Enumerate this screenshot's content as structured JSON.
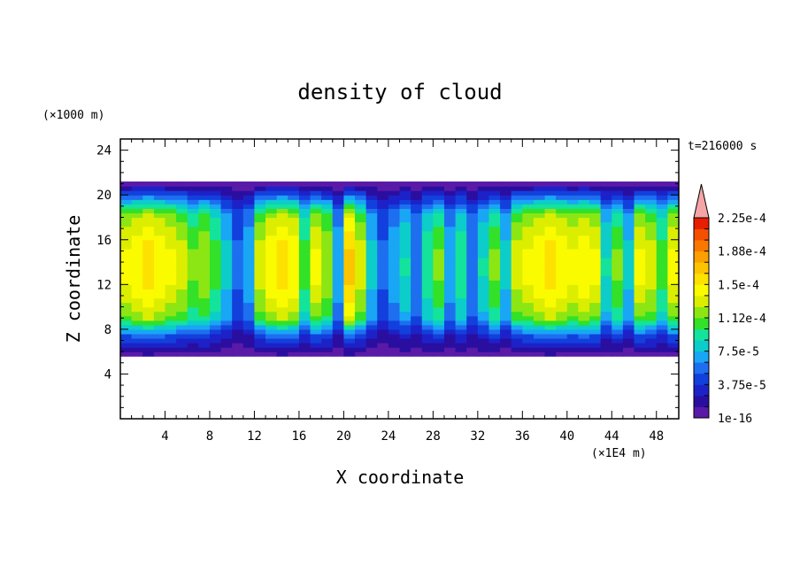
{
  "chart_data": {
    "type": "heatmap",
    "title": "density of cloud",
    "xlabel": "X coordinate",
    "ylabel": "Z coordinate",
    "x_unit": "(×1E4 m)",
    "y_unit": "(×1000 m)",
    "time_label": "t=216000 s",
    "xlim": [
      0,
      50
    ],
    "ylim": [
      0,
      25
    ],
    "x_ticks": [
      "4",
      "8",
      "12",
      "16",
      "20",
      "24",
      "28",
      "32",
      "36",
      "40",
      "44",
      "48"
    ],
    "x_tick_values": [
      4,
      8,
      12,
      16,
      20,
      24,
      28,
      32,
      36,
      40,
      44,
      48
    ],
    "y_ticks": [
      "4",
      "8",
      "12",
      "16",
      "20",
      "24"
    ],
    "y_tick_values": [
      4,
      8,
      12,
      16,
      20,
      24
    ],
    "cloud_layer": {
      "base_z": 5.6,
      "top_z": 21.2
    },
    "colorbar": {
      "extend": "max",
      "extend_color": "#f5a5a5",
      "colors": [
        "#5a1aa8",
        "#2a0ea0",
        "#1c22c8",
        "#1240dc",
        "#1e6ef0",
        "#18a6f5",
        "#0ccdc9",
        "#14e39b",
        "#32e128",
        "#8ce614",
        "#dcee00",
        "#fbfb00",
        "#fde100",
        "#fcc400",
        "#fba000",
        "#fa7800",
        "#f55000",
        "#e81e00"
      ],
      "tick_labels": [
        "1e-16",
        "3.75e-5",
        "7.5e-5",
        "1.12e-4",
        "1.5e-4",
        "1.88e-4",
        "2.25e-4"
      ],
      "tick_values": [
        0,
        3.75e-05,
        7.5e-05,
        0.0001125,
        0.00015,
        0.0001875,
        0.000225
      ],
      "vmin": 0,
      "vmax": 0.000255
    },
    "columns": [
      {
        "x": 0.5,
        "v": 0.00016
      },
      {
        "x": 1.5,
        "v": 0.00017
      },
      {
        "x": 2.5,
        "v": 0.00018
      },
      {
        "x": 3.5,
        "v": 0.00017
      },
      {
        "x": 4.5,
        "v": 0.00016
      },
      {
        "x": 5.5,
        "v": 0.00015
      },
      {
        "x": 6.5,
        "v": 0.00013
      },
      {
        "x": 7.5,
        "v": 0.00014
      },
      {
        "x": 8.5,
        "v": 0.00012
      },
      {
        "x": 9.5,
        "v": 9e-05
      },
      {
        "x": 10.5,
        "v": 6e-05
      },
      {
        "x": 11.5,
        "v": 8e-05
      },
      {
        "x": 12.5,
        "v": 0.00015
      },
      {
        "x": 13.5,
        "v": 0.00017
      },
      {
        "x": 14.5,
        "v": 0.00018
      },
      {
        "x": 15.5,
        "v": 0.00017
      },
      {
        "x": 16.5,
        "v": 0.00012
      },
      {
        "x": 17.5,
        "v": 0.00016
      },
      {
        "x": 18.5,
        "v": 0.00014
      },
      {
        "x": 19.5,
        "v": 8e-05
      },
      {
        "x": 20.5,
        "v": 0.00019
      },
      {
        "x": 21.5,
        "v": 0.00015
      },
      {
        "x": 22.5,
        "v": 9e-05
      },
      {
        "x": 23.5,
        "v": 6e-05
      },
      {
        "x": 24.5,
        "v": 8e-05
      },
      {
        "x": 25.5,
        "v": 0.0001
      },
      {
        "x": 26.5,
        "v": 7e-05
      },
      {
        "x": 27.5,
        "v": 0.00011
      },
      {
        "x": 28.5,
        "v": 0.00013
      },
      {
        "x": 29.5,
        "v": 8e-05
      },
      {
        "x": 30.5,
        "v": 0.00011
      },
      {
        "x": 31.5,
        "v": 7e-05
      },
      {
        "x": 32.5,
        "v": 0.0001
      },
      {
        "x": 33.5,
        "v": 0.00013
      },
      {
        "x": 34.5,
        "v": 9e-05
      },
      {
        "x": 35.5,
        "v": 0.00015
      },
      {
        "x": 36.5,
        "v": 0.00016
      },
      {
        "x": 37.5,
        "v": 0.00017
      },
      {
        "x": 38.5,
        "v": 0.00018
      },
      {
        "x": 39.5,
        "v": 0.00017
      },
      {
        "x": 40.5,
        "v": 0.00016
      },
      {
        "x": 41.5,
        "v": 0.00017
      },
      {
        "x": 42.5,
        "v": 0.00016
      },
      {
        "x": 43.5,
        "v": 0.0001
      },
      {
        "x": 44.5,
        "v": 0.00013
      },
      {
        "x": 45.5,
        "v": 9e-05
      },
      {
        "x": 46.5,
        "v": 0.00016
      },
      {
        "x": 47.5,
        "v": 0.00015
      },
      {
        "x": 48.5,
        "v": 0.00012
      },
      {
        "x": 49.5,
        "v": 0.00016
      }
    ]
  }
}
